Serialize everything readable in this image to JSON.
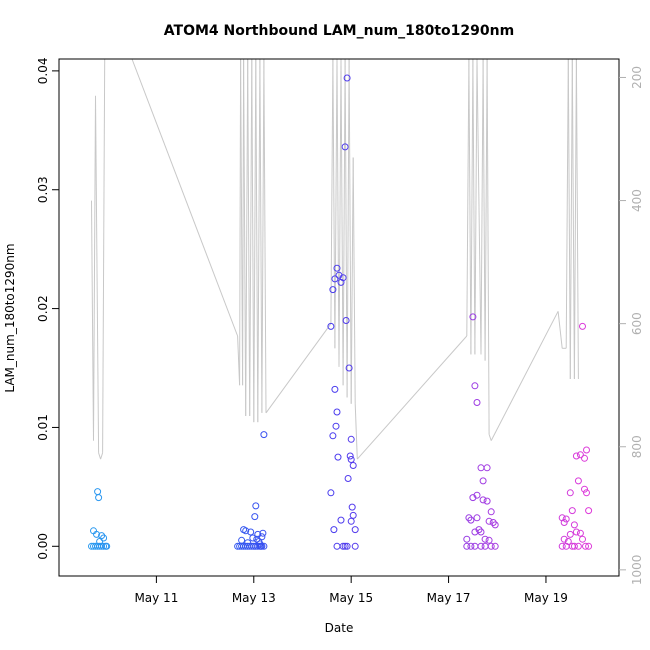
{
  "chart_data": {
    "type": "scatter",
    "title": "ATOM4 Northbound LAM_num_180to1290nm",
    "xlabel": "Date",
    "ylabel": "LAM_num_180to1290nm",
    "xlim": [
      "2019-05-09 00:00",
      "2019-05-20 12:00"
    ],
    "ylim": [
      -0.0025,
      0.041
    ],
    "x_ticks": [
      {
        "date": "2019-05-11",
        "label": "May 11"
      },
      {
        "date": "2019-05-13",
        "label": "May 13"
      },
      {
        "date": "2019-05-15",
        "label": "May 15"
      },
      {
        "date": "2019-05-17",
        "label": "May 17"
      },
      {
        "date": "2019-05-19",
        "label": "May 19"
      }
    ],
    "y_ticks": [
      {
        "value": 0.0,
        "label": "0.00"
      },
      {
        "value": 0.01,
        "label": "0.01"
      },
      {
        "value": 0.02,
        "label": "0.02"
      },
      {
        "value": 0.03,
        "label": "0.03"
      },
      {
        "value": 0.04,
        "label": "0.04"
      }
    ],
    "y2_axis": {
      "reversed": true,
      "ylim": [
        1010,
        170
      ],
      "ticks": [
        {
          "value": 200,
          "label": "200"
        },
        {
          "value": 400,
          "label": "400"
        },
        {
          "value": 600,
          "label": "600"
        },
        {
          "value": 800,
          "label": "800"
        },
        {
          "value": 1000,
          "label": "1000"
        }
      ],
      "color": "#b0b0b0"
    },
    "colors": {
      "line": "#c8c8c8",
      "point_start": "#29a9f0",
      "point_mid": "#3b3bf0",
      "point_end": "#f03bd7"
    },
    "points": [
      [
        "2019-05-09 16:00",
        0.0
      ],
      [
        "2019-05-09 17:00",
        0.0
      ],
      [
        "2019-05-09 18:00",
        0.0
      ],
      [
        "2019-05-09 19:00",
        0.0
      ],
      [
        "2019-05-09 20:00",
        0.0
      ],
      [
        "2019-05-09 21:00",
        0.0
      ],
      [
        "2019-05-09 22:00",
        0.0
      ],
      [
        "2019-05-09 23:00",
        0.0
      ],
      [
        "2019-05-09 17:00",
        0.0013
      ],
      [
        "2019-05-09 18:30",
        0.001
      ],
      [
        "2019-05-09 21:00",
        0.0009
      ],
      [
        "2019-05-09 22:00",
        0.0007
      ],
      [
        "2019-05-09 19:00",
        0.0046
      ],
      [
        "2019-05-09 19:30",
        0.0041
      ],
      [
        "2019-05-09 20:00",
        0.0004
      ],
      [
        "2019-05-09 23:30",
        0.0
      ],
      [
        "2019-05-12 16:00",
        0.0
      ],
      [
        "2019-05-12 17:00",
        0.0
      ],
      [
        "2019-05-12 18:00",
        0.0
      ],
      [
        "2019-05-12 19:00",
        0.0
      ],
      [
        "2019-05-12 20:00",
        0.0
      ],
      [
        "2019-05-12 21:00",
        0.0
      ],
      [
        "2019-05-12 22:00",
        0.0
      ],
      [
        "2019-05-12 23:00",
        0.0
      ],
      [
        "2019-05-13 00:00",
        0.0
      ],
      [
        "2019-05-13 01:00",
        0.0
      ],
      [
        "2019-05-13 02:00",
        0.0
      ],
      [
        "2019-05-13 03:00",
        0.0
      ],
      [
        "2019-05-13 04:00",
        0.0
      ],
      [
        "2019-05-13 05:00",
        0.0
      ],
      [
        "2019-05-12 18:00",
        0.0005
      ],
      [
        "2019-05-12 19:00",
        0.0014
      ],
      [
        "2019-05-12 20:00",
        0.0013
      ],
      [
        "2019-05-12 21:00",
        0.0003
      ],
      [
        "2019-05-12 22:30",
        0.0012
      ],
      [
        "2019-05-12 23:30",
        0.0007
      ],
      [
        "2019-05-13 00:30",
        0.0025
      ],
      [
        "2019-05-13 01:00",
        0.0034
      ],
      [
        "2019-05-13 01:30",
        0.0006
      ],
      [
        "2019-05-13 02:00",
        0.001
      ],
      [
        "2019-05-13 03:00",
        0.0002
      ],
      [
        "2019-05-13 04:00",
        0.0008
      ],
      [
        "2019-05-13 04:30",
        0.0011
      ],
      [
        "2019-05-13 05:00",
        0.0094
      ],
      [
        "2019-05-13 02:30",
        0.0004
      ],
      [
        "2019-05-13 03:30",
        0.0
      ],
      [
        "2019-05-14 14:00",
        0.0185
      ],
      [
        "2019-05-14 15:00",
        0.0216
      ],
      [
        "2019-05-14 16:00",
        0.0225
      ],
      [
        "2019-05-14 17:00",
        0.0234
      ],
      [
        "2019-05-14 18:00",
        0.0228
      ],
      [
        "2019-05-14 19:00",
        0.0222
      ],
      [
        "2019-05-14 20:00",
        0.0226
      ],
      [
        "2019-05-14 21:00",
        0.0336
      ],
      [
        "2019-05-14 22:00",
        0.0394
      ],
      [
        "2019-05-14 21:30",
        0.019
      ],
      [
        "2019-05-14 23:00",
        0.015
      ],
      [
        "2019-05-14 16:00",
        0.0132
      ],
      [
        "2019-05-14 17:00",
        0.0113
      ],
      [
        "2019-05-14 16:30",
        0.0101
      ],
      [
        "2019-05-14 15:00",
        0.0093
      ],
      [
        "2019-05-15 00:00",
        0.009
      ],
      [
        "2019-05-14 17:30",
        0.0075
      ],
      [
        "2019-05-14 23:30",
        0.0076
      ],
      [
        "2019-05-15 00:00",
        0.0073
      ],
      [
        "2019-05-15 01:00",
        0.0068
      ],
      [
        "2019-05-14 22:30",
        0.0057
      ],
      [
        "2019-05-14 14:00",
        0.0045
      ],
      [
        "2019-05-15 00:30",
        0.0033
      ],
      [
        "2019-05-15 01:00",
        0.0026
      ],
      [
        "2019-05-14 19:00",
        0.0022
      ],
      [
        "2019-05-15 00:00",
        0.0021
      ],
      [
        "2019-05-14 15:30",
        0.0014
      ],
      [
        "2019-05-15 02:00",
        0.0014
      ],
      [
        "2019-05-14 17:00",
        0.0
      ],
      [
        "2019-05-14 20:00",
        0.0
      ],
      [
        "2019-05-14 21:00",
        0.0
      ],
      [
        "2019-05-14 22:00",
        0.0
      ],
      [
        "2019-05-15 02:00",
        0.0
      ],
      [
        "2019-05-17 12:00",
        0.0193
      ],
      [
        "2019-05-17 13:00",
        0.0135
      ],
      [
        "2019-05-17 14:00",
        0.0121
      ],
      [
        "2019-05-17 16:00",
        0.0066
      ],
      [
        "2019-05-17 19:00",
        0.0066
      ],
      [
        "2019-05-17 17:00",
        0.0055
      ],
      [
        "2019-05-17 14:00",
        0.0043
      ],
      [
        "2019-05-17 12:00",
        0.0041
      ],
      [
        "2019-05-17 17:00",
        0.0039
      ],
      [
        "2019-05-17 19:00",
        0.0038
      ],
      [
        "2019-05-17 21:00",
        0.0029
      ],
      [
        "2019-05-17 10:00",
        0.0024
      ],
      [
        "2019-05-17 11:00",
        0.0022
      ],
      [
        "2019-05-17 14:00",
        0.0024
      ],
      [
        "2019-05-17 20:00",
        0.0021
      ],
      [
        "2019-05-17 22:00",
        0.002
      ],
      [
        "2019-05-17 23:00",
        0.0018
      ],
      [
        "2019-05-17 15:00",
        0.0014
      ],
      [
        "2019-05-17 13:00",
        0.0012
      ],
      [
        "2019-05-17 16:00",
        0.0012
      ],
      [
        "2019-05-17 09:00",
        0.0006
      ],
      [
        "2019-05-17 18:00",
        0.0006
      ],
      [
        "2019-05-17 20:00",
        0.0005
      ],
      [
        "2019-05-17 09:00",
        0.0
      ],
      [
        "2019-05-17 11:00",
        0.0
      ],
      [
        "2019-05-17 13:00",
        0.0
      ],
      [
        "2019-05-17 16:00",
        0.0
      ],
      [
        "2019-05-17 18:00",
        0.0
      ],
      [
        "2019-05-17 21:00",
        0.0
      ],
      [
        "2019-05-17 23:00",
        0.0
      ],
      [
        "2019-05-19 18:00",
        0.0185
      ],
      [
        "2019-05-19 20:00",
        0.0081
      ],
      [
        "2019-05-19 15:00",
        0.0076
      ],
      [
        "2019-05-19 17:00",
        0.0077
      ],
      [
        "2019-05-19 19:00",
        0.0074
      ],
      [
        "2019-05-19 12:00",
        0.0045
      ],
      [
        "2019-05-19 16:00",
        0.0055
      ],
      [
        "2019-05-19 19:00",
        0.0048
      ],
      [
        "2019-05-19 20:00",
        0.0045
      ],
      [
        "2019-05-19 13:00",
        0.003
      ],
      [
        "2019-05-19 21:00",
        0.003
      ],
      [
        "2019-05-19 08:00",
        0.0024
      ],
      [
        "2019-05-19 09:00",
        0.002
      ],
      [
        "2019-05-19 10:00",
        0.0023
      ],
      [
        "2019-05-19 14:00",
        0.0018
      ],
      [
        "2019-05-19 15:00",
        0.0012
      ],
      [
        "2019-05-19 12:00",
        0.001
      ],
      [
        "2019-05-19 17:00",
        0.0011
      ],
      [
        "2019-05-19 09:00",
        0.0006
      ],
      [
        "2019-05-19 18:00",
        0.0006
      ],
      [
        "2019-05-19 11:00",
        0.0004
      ],
      [
        "2019-05-19 08:00",
        0.0
      ],
      [
        "2019-05-19 10:00",
        0.0
      ],
      [
        "2019-05-19 13:00",
        0.0
      ],
      [
        "2019-05-19 14:00",
        0.0
      ],
      [
        "2019-05-19 16:00",
        0.0
      ],
      [
        "2019-05-19 19:30",
        0.0
      ],
      [
        "2019-05-19 21:00",
        0.0
      ]
    ],
    "line_series": [
      [
        "2019-05-09 16:00",
        400
      ],
      [
        "2019-05-09 17:00",
        790
      ],
      [
        "2019-05-09 18:00",
        230
      ],
      [
        "2019-05-09 19:30",
        810
      ],
      [
        "2019-05-09 20:30",
        820
      ],
      [
        "2019-05-09 21:30",
        810
      ],
      [
        "2019-05-09 22:30",
        170
      ],
      [
        "2019-05-10 12:00",
        170
      ],
      [
        "2019-05-12 16:00",
        620
      ],
      [
        "2019-05-12 17:00",
        700
      ],
      [
        "2019-05-12 17:30",
        170
      ],
      [
        "2019-05-12 18:30",
        700
      ],
      [
        "2019-05-12 19:00",
        170
      ],
      [
        "2019-05-12 20:00",
        750
      ],
      [
        "2019-05-12 21:00",
        170
      ],
      [
        "2019-05-12 22:00",
        750
      ],
      [
        "2019-05-12 23:00",
        170
      ],
      [
        "2019-05-13 00:00",
        760
      ],
      [
        "2019-05-13 01:00",
        170
      ],
      [
        "2019-05-13 02:00",
        760
      ],
      [
        "2019-05-13 03:00",
        170
      ],
      [
        "2019-05-13 04:00",
        745
      ],
      [
        "2019-05-13 05:00",
        170
      ],
      [
        "2019-05-13 06:00",
        745
      ],
      [
        "2019-05-14 14:00",
        600
      ],
      [
        "2019-05-14 15:00",
        170
      ],
      [
        "2019-05-14 16:00",
        640
      ],
      [
        "2019-05-14 17:00",
        170
      ],
      [
        "2019-05-14 18:00",
        670
      ],
      [
        "2019-05-14 19:00",
        170
      ],
      [
        "2019-05-14 20:00",
        700
      ],
      [
        "2019-05-14 21:00",
        170
      ],
      [
        "2019-05-14 22:00",
        720
      ],
      [
        "2019-05-14 23:00",
        170
      ],
      [
        "2019-05-15 00:00",
        730
      ],
      [
        "2019-05-15 01:00",
        330
      ],
      [
        "2019-05-15 02:00",
        730
      ],
      [
        "2019-05-15 03:00",
        820
      ],
      [
        "2019-05-17 09:00",
        620
      ],
      [
        "2019-05-17 10:00",
        170
      ],
      [
        "2019-05-17 11:00",
        650
      ],
      [
        "2019-05-17 12:00",
        170
      ],
      [
        "2019-05-17 13:00",
        650
      ],
      [
        "2019-05-17 14:00",
        170
      ],
      [
        "2019-05-17 16:00",
        650
      ],
      [
        "2019-05-17 17:00",
        170
      ],
      [
        "2019-05-17 18:00",
        660
      ],
      [
        "2019-05-17 19:00",
        170
      ],
      [
        "2019-05-17 20:00",
        780
      ],
      [
        "2019-05-17 21:00",
        790
      ],
      [
        "2019-05-19 06:00",
        580
      ],
      [
        "2019-05-19 08:00",
        640
      ],
      [
        "2019-05-19 10:00",
        640
      ],
      [
        "2019-05-19 11:00",
        170
      ],
      [
        "2019-05-19 12:00",
        690
      ],
      [
        "2019-05-19 13:00",
        170
      ],
      [
        "2019-05-19 14:00",
        690
      ],
      [
        "2019-05-19 15:00",
        170
      ],
      [
        "2019-05-19 16:00",
        690
      ]
    ]
  }
}
